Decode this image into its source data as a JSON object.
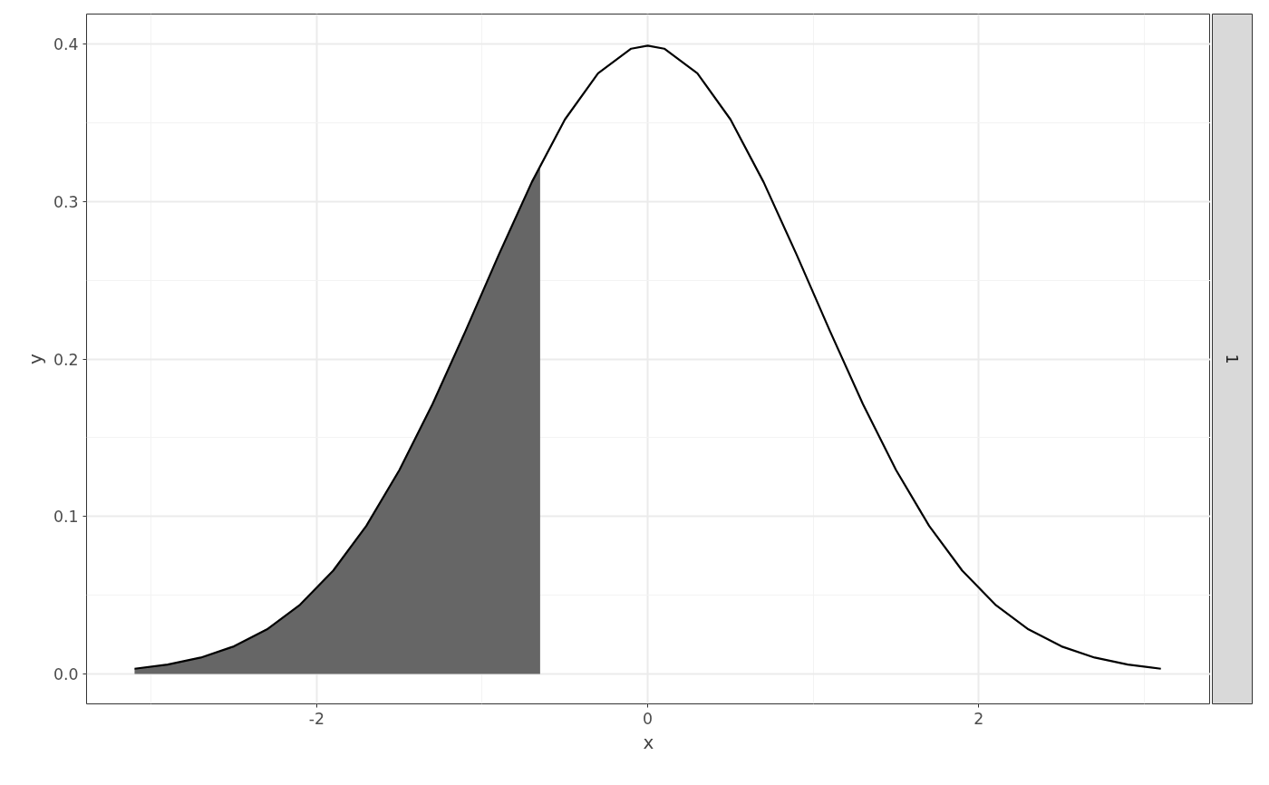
{
  "chart_data": {
    "type": "line",
    "xlabel": "x",
    "ylabel": "y",
    "annotations": [
      "1"
    ],
    "xlim": [
      -3.39,
      3.4
    ],
    "ylim": [
      -0.019,
      0.419
    ],
    "xticks": [
      -2,
      0,
      2
    ],
    "yticks": [
      {
        "value": 0,
        "label": "0.0"
      },
      0.1,
      0.2,
      0.3,
      0.4
    ],
    "grid": true,
    "marker": "none",
    "series": [
      {
        "type": "area",
        "color": "#666666",
        "x": [
          -3.1,
          -2.9,
          -2.7,
          -2.5,
          -2.3,
          -2.1,
          -1.9,
          -1.7,
          -1.5,
          -1.3,
          -1.1,
          -0.9,
          -0.7,
          -0.65
        ],
        "values": [
          0.0033,
          0.006,
          0.0104,
          0.0175,
          0.0283,
          0.044,
          0.0656,
          0.094,
          0.1295,
          0.1714,
          0.2179,
          0.2661,
          0.3123,
          0.323
        ]
      },
      {
        "color": "#000000",
        "x": [
          -3.1,
          -2.9,
          -2.7,
          -2.5,
          -2.3,
          -2.1,
          -1.9,
          -1.7,
          -1.5,
          -1.3,
          -1.1,
          -0.9,
          -0.7,
          -0.5,
          -0.3,
          -0.1,
          0,
          0.1,
          0.3,
          0.5,
          0.7,
          0.9,
          1.1,
          1.3,
          1.5,
          1.7,
          1.9,
          2.1,
          2.3,
          2.5,
          2.7,
          2.9,
          3.1
        ],
        "values": [
          0.0033,
          0.006,
          0.0104,
          0.0175,
          0.0283,
          0.044,
          0.0656,
          0.094,
          0.1295,
          0.1714,
          0.2179,
          0.2661,
          0.3123,
          0.3521,
          0.3814,
          0.397,
          0.3989,
          0.397,
          0.3814,
          0.3521,
          0.3123,
          0.2661,
          0.2179,
          0.1714,
          0.1295,
          0.094,
          0.0656,
          0.044,
          0.0283,
          0.0175,
          0.0104,
          0.006,
          0.0033
        ]
      }
    ]
  }
}
